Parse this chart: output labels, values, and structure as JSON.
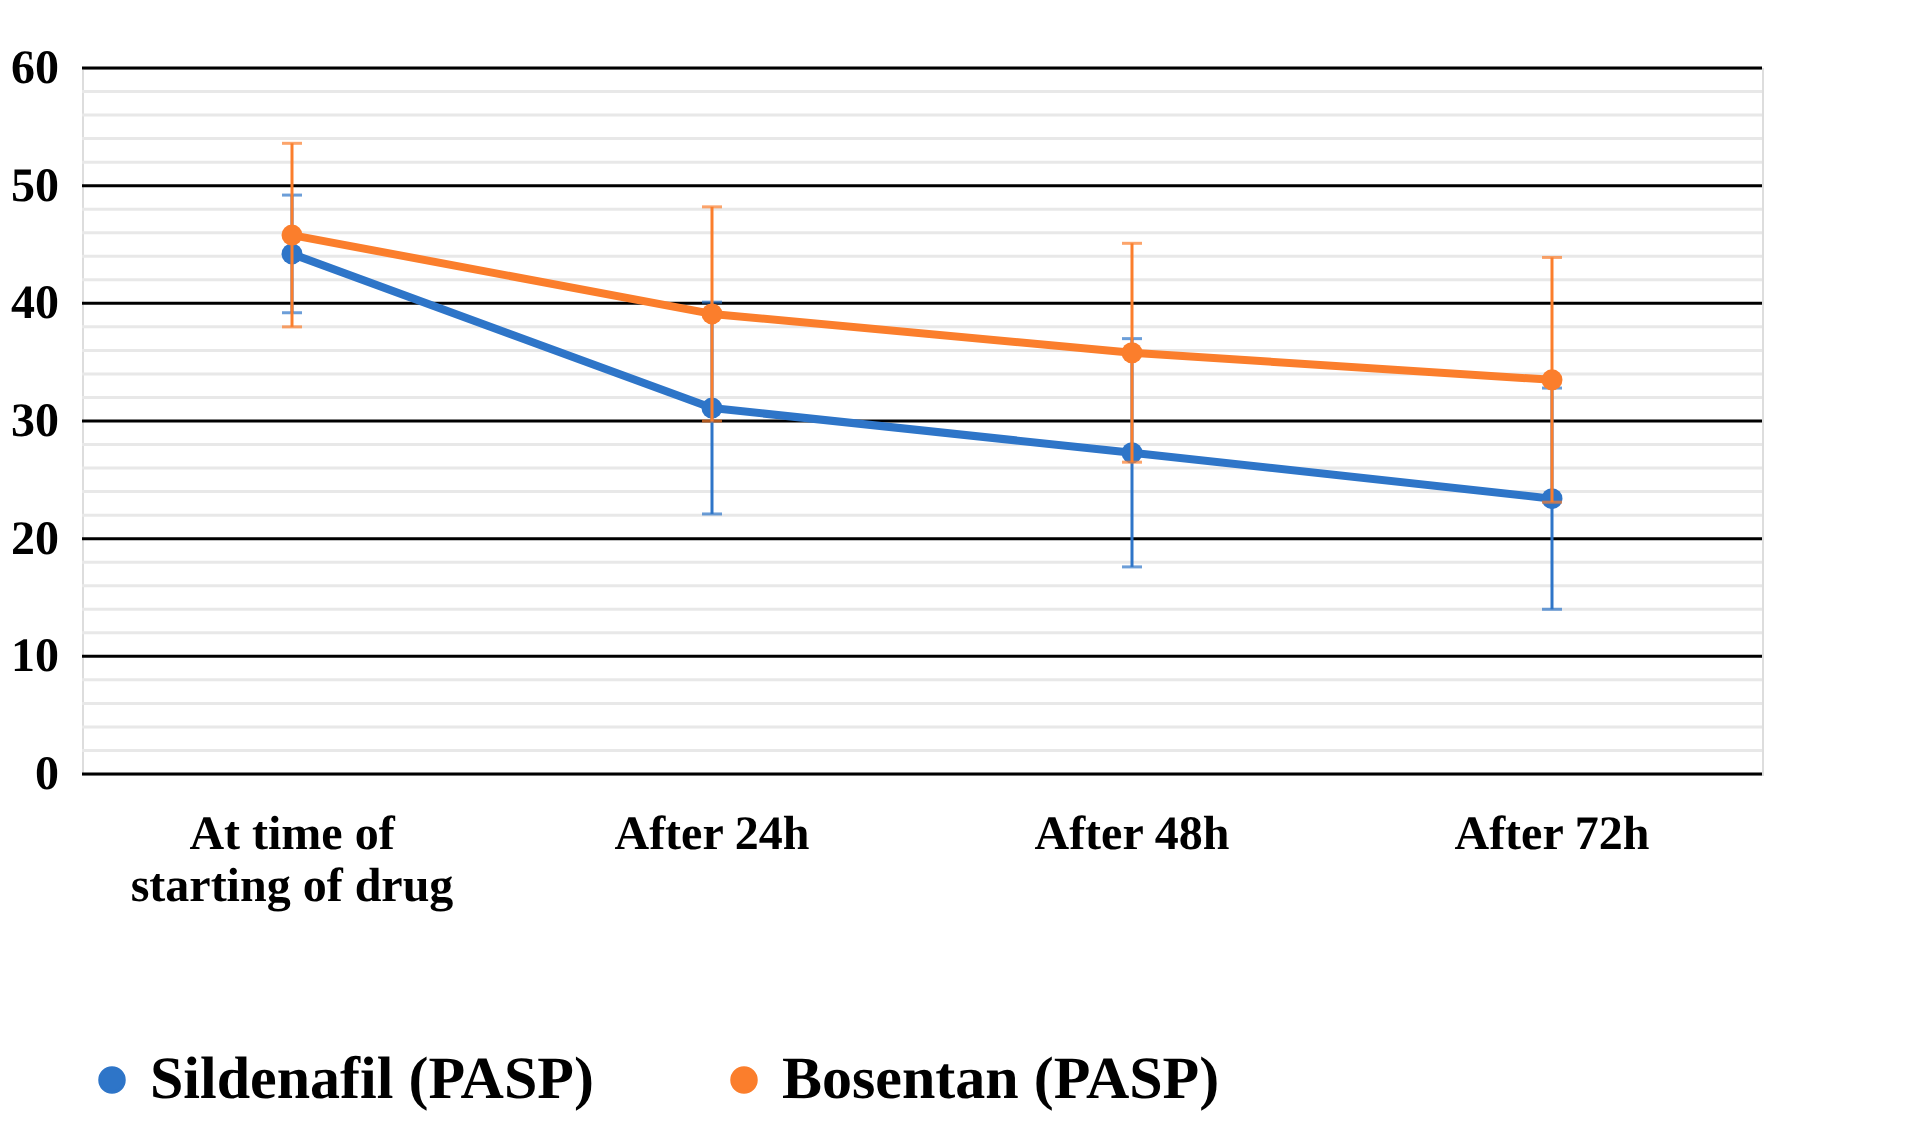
{
  "chart_data": {
    "type": "line",
    "categories": [
      "At time of starting of drug",
      "After 24h",
      "After 48h",
      "After 72h"
    ],
    "series": [
      {
        "name": "Sildenafil (PASP)",
        "color": "#2e75c8",
        "values": [
          44.2,
          31.1,
          27.3,
          23.4
        ],
        "errors": [
          5,
          9,
          9.7,
          9.4
        ]
      },
      {
        "name": "Bosentan (PASP)",
        "color": "#fb7e2c",
        "values": [
          45.8,
          39.1,
          35.8,
          33.5
        ],
        "errors": [
          7.8,
          9.1,
          9.3,
          10.4
        ]
      }
    ],
    "ylim": [
      0,
      60
    ],
    "yticks": [
      0,
      {
        "value": 2,
        "label": null
      },
      {
        "value": 4,
        "label": null
      },
      {
        "value": 6,
        "label": null
      },
      {
        "value": 8,
        "label": null
      },
      10,
      {
        "value": 12,
        "label": null
      },
      {
        "value": 14,
        "label": null
      },
      {
        "value": 16,
        "label": null
      },
      {
        "value": 18,
        "label": null
      },
      20,
      {
        "value": 22,
        "label": null
      },
      {
        "value": 24,
        "label": null
      },
      {
        "value": 26,
        "label": null
      },
      {
        "value": 28,
        "label": null
      },
      30,
      {
        "value": 32,
        "label": null
      },
      {
        "value": 34,
        "label": null
      },
      {
        "value": 36,
        "label": null
      },
      {
        "value": 38,
        "label": null
      },
      40,
      {
        "value": 42,
        "label": null
      },
      {
        "value": 44,
        "label": null
      },
      {
        "value": 46,
        "label": null
      },
      {
        "value": 48,
        "label": null
      },
      50,
      {
        "value": 52,
        "label": null
      },
      {
        "value": 54,
        "label": null
      },
      {
        "value": 56,
        "label": null
      },
      {
        "value": 58,
        "label": null
      },
      60
    ],
    "grid": true,
    "legend": "bottom",
    "marker": "circle",
    "line_style": "solid"
  }
}
